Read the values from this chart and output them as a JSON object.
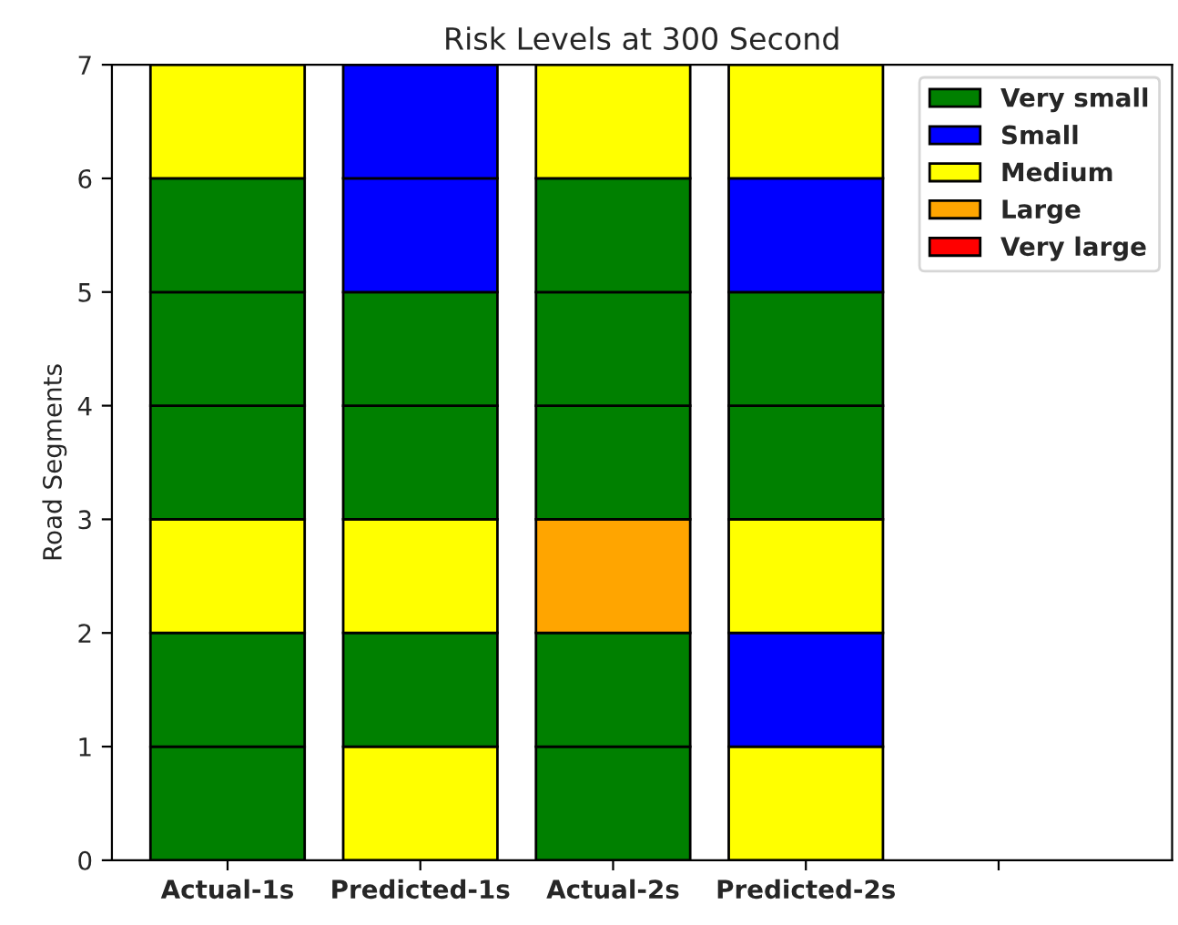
{
  "chart_data": {
    "type": "bar",
    "stacked": true,
    "title": "Risk Levels at 300 Second",
    "ylabel": "Road Segments",
    "categories": [
      "Actual-1s",
      "Predicted-1s",
      "Actual-2s",
      "Predicted-2s",
      null
    ],
    "ylim": [
      0,
      7
    ],
    "yticks": [
      0,
      1,
      2,
      3,
      4,
      5,
      6,
      7
    ],
    "grid": false,
    "legend": "top right",
    "series": [
      {
        "name": "Very small",
        "color": "#008000",
        "values": [
          null,
          null,
          null,
          null,
          null
        ]
      },
      {
        "name": "Small",
        "color": "#0000ff",
        "values": [
          null,
          null,
          null,
          null,
          null
        ]
      },
      {
        "name": "Medium",
        "color": "#ffff00",
        "values": [
          null,
          null,
          null,
          null,
          null
        ]
      },
      {
        "name": "Large",
        "color": "#ffa500",
        "values": [
          null,
          null,
          null,
          null,
          null
        ]
      },
      {
        "name": "Very large",
        "color": "#ff0000",
        "values": [
          null,
          null,
          null,
          null,
          null
        ]
      },
      {
        "colors": [
          "#008000",
          "#ffff00",
          "#008000",
          "#ffff00",
          "#008000"
        ],
        "values": [
          1,
          1,
          1,
          1,
          null
        ]
      },
      {
        "colors": [
          "#008000",
          "#008000",
          "#008000",
          "#0000ff",
          "#008000"
        ],
        "values": [
          1,
          1,
          1,
          1,
          null
        ]
      },
      {
        "colors": [
          "#ffff00",
          "#ffff00",
          "#ffa500",
          "#ffff00",
          "#008000"
        ],
        "values": [
          1,
          1,
          1,
          1,
          null
        ]
      },
      {
        "colors": [
          "#008000",
          "#008000",
          "#008000",
          "#008000",
          "#008000"
        ],
        "values": [
          1,
          1,
          1,
          1,
          null
        ]
      },
      {
        "colors": [
          "#008000",
          "#008000",
          "#008000",
          "#008000",
          "#008000"
        ],
        "values": [
          1,
          1,
          1,
          1,
          null
        ]
      },
      {
        "colors": [
          "#008000",
          "#0000ff",
          "#008000",
          "#0000ff",
          "#008000"
        ],
        "values": [
          1,
          1,
          1,
          1,
          null
        ]
      },
      {
        "colors": [
          "#ffff00",
          "#0000ff",
          "#ffff00",
          "#ffff00",
          "#008000"
        ],
        "values": [
          1,
          1,
          1,
          1,
          null
        ]
      }
    ]
  }
}
